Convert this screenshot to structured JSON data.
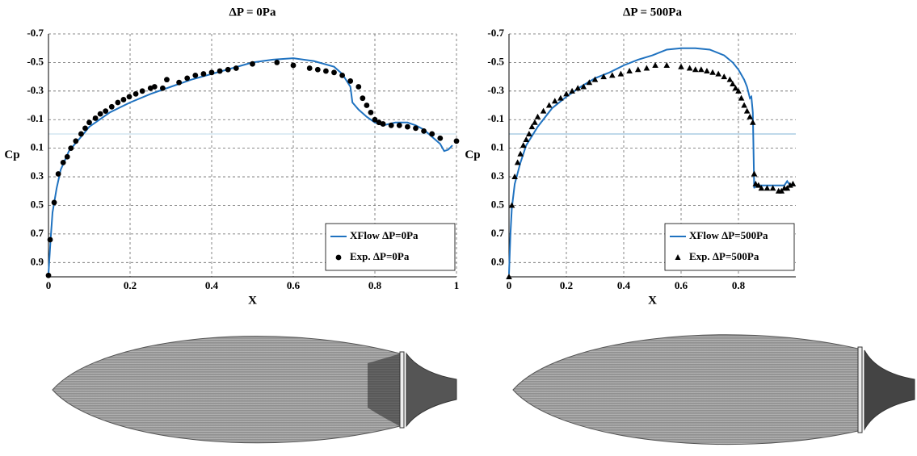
{
  "chart_data": [
    {
      "type": "line",
      "title": "ΔP = 0Pa",
      "x_label": "X",
      "y_label": "Cp",
      "xlim": [
        0,
        1
      ],
      "xticks": [
        0,
        0.2,
        0.4,
        0.6,
        0.8,
        1
      ],
      "ylim": [
        1,
        -0.7
      ],
      "yticks": [
        -0.7,
        -0.5,
        -0.3,
        -0.1,
        0.1,
        0.3,
        0.5,
        0.7,
        0.9
      ],
      "grid": true,
      "legend": "lower right",
      "reference_line": 0,
      "reference_line_color": "#bcd9e8",
      "series": [
        {
          "name": "XFlow ΔP=0Pa",
          "color": "#1f72c0",
          "marker": "line",
          "x": [
            0,
            0.005,
            0.01,
            0.02,
            0.03,
            0.05,
            0.08,
            0.1,
            0.15,
            0.2,
            0.25,
            0.3,
            0.35,
            0.4,
            0.45,
            0.5,
            0.55,
            0.6,
            0.65,
            0.7,
            0.72,
            0.74,
            0.745,
            0.76,
            0.78,
            0.8,
            0.82,
            0.85,
            0.88,
            0.9,
            0.92,
            0.94,
            0.96,
            0.97,
            0.98,
            0.99
          ],
          "values": [
            0.98,
            0.75,
            0.55,
            0.38,
            0.25,
            0.12,
            0.02,
            -0.05,
            -0.15,
            -0.22,
            -0.28,
            -0.33,
            -0.38,
            -0.42,
            -0.46,
            -0.5,
            -0.52,
            -0.53,
            -0.51,
            -0.47,
            -0.42,
            -0.33,
            -0.22,
            -0.17,
            -0.12,
            -0.08,
            -0.06,
            -0.08,
            -0.08,
            -0.06,
            -0.03,
            0.02,
            0.07,
            0.12,
            0.11,
            0.08
          ]
        },
        {
          "name": "Exp. ΔP=0Pa",
          "color": "#000000",
          "marker": "circle",
          "x": [
            0,
            0.004,
            0.014,
            0.024,
            0.036,
            0.046,
            0.055,
            0.067,
            0.08,
            0.09,
            0.1,
            0.115,
            0.127,
            0.14,
            0.155,
            0.17,
            0.184,
            0.198,
            0.214,
            0.23,
            0.25,
            0.26,
            0.28,
            0.29,
            0.32,
            0.34,
            0.36,
            0.38,
            0.4,
            0.42,
            0.44,
            0.46,
            0.5,
            0.56,
            0.6,
            0.64,
            0.66,
            0.68,
            0.7,
            0.72,
            0.74,
            0.76,
            0.77,
            0.78,
            0.79,
            0.8,
            0.81,
            0.82,
            0.84,
            0.86,
            0.88,
            0.9,
            0.92,
            0.94,
            0.96,
            1.0
          ],
          "values": [
            0.99,
            0.74,
            0.48,
            0.28,
            0.2,
            0.16,
            0.1,
            0.05,
            0.0,
            -0.04,
            -0.08,
            -0.11,
            -0.14,
            -0.16,
            -0.19,
            -0.22,
            -0.24,
            -0.26,
            -0.28,
            -0.3,
            -0.32,
            -0.33,
            -0.32,
            -0.38,
            -0.36,
            -0.39,
            -0.41,
            -0.42,
            -0.43,
            -0.44,
            -0.45,
            -0.46,
            -0.49,
            -0.5,
            -0.48,
            -0.46,
            -0.45,
            -0.44,
            -0.43,
            -0.41,
            -0.37,
            -0.33,
            -0.25,
            -0.2,
            -0.15,
            -0.1,
            -0.08,
            -0.07,
            -0.06,
            -0.06,
            -0.05,
            -0.04,
            -0.02,
            0.0,
            0.03,
            0.05
          ]
        }
      ]
    },
    {
      "type": "line",
      "title": "ΔP = 500Pa",
      "x_label": "X",
      "y_label": "Cp",
      "xlim": [
        0,
        1
      ],
      "xticks": [
        0,
        0.2,
        0.4,
        0.6,
        0.8
      ],
      "ylim": [
        1,
        -0.7
      ],
      "yticks": [
        -0.7,
        -0.5,
        -0.3,
        -0.1,
        0.1,
        0.3,
        0.5,
        0.7,
        0.9
      ],
      "grid": true,
      "legend": "lower right",
      "reference_line": 0,
      "reference_line_color": "#7fb3d5",
      "series": [
        {
          "name": "XFlow ΔP=500Pa",
          "color": "#1f72c0",
          "marker": "line",
          "x": [
            0,
            0.005,
            0.01,
            0.02,
            0.04,
            0.06,
            0.1,
            0.15,
            0.2,
            0.25,
            0.3,
            0.35,
            0.4,
            0.45,
            0.5,
            0.55,
            0.6,
            0.65,
            0.7,
            0.75,
            0.78,
            0.8,
            0.82,
            0.83,
            0.84,
            0.845,
            0.85,
            0.855,
            0.86,
            0.9,
            0.94,
            0.96,
            0.97,
            0.98,
            0.99
          ],
          "values": [
            0.98,
            0.7,
            0.52,
            0.35,
            0.2,
            0.08,
            -0.05,
            -0.18,
            -0.26,
            -0.33,
            -0.39,
            -0.43,
            -0.48,
            -0.52,
            -0.55,
            -0.59,
            -0.6,
            -0.6,
            -0.59,
            -0.55,
            -0.5,
            -0.45,
            -0.38,
            -0.33,
            -0.25,
            -0.26,
            -0.15,
            0.38,
            0.36,
            0.36,
            0.36,
            0.36,
            0.33,
            0.36,
            0.35
          ]
        },
        {
          "name": "Exp. ΔP=500Pa",
          "color": "#000000",
          "marker": "triangle",
          "x": [
            0,
            0.01,
            0.02,
            0.03,
            0.04,
            0.05,
            0.06,
            0.07,
            0.08,
            0.09,
            0.1,
            0.12,
            0.14,
            0.16,
            0.18,
            0.2,
            0.22,
            0.24,
            0.26,
            0.28,
            0.3,
            0.33,
            0.36,
            0.39,
            0.42,
            0.45,
            0.48,
            0.51,
            0.55,
            0.6,
            0.63,
            0.65,
            0.67,
            0.69,
            0.71,
            0.73,
            0.75,
            0.77,
            0.78,
            0.79,
            0.8,
            0.81,
            0.82,
            0.83,
            0.84,
            0.85,
            0.855,
            0.86,
            0.87,
            0.88,
            0.9,
            0.92,
            0.94,
            0.95,
            0.96,
            0.97,
            0.98,
            0.99
          ],
          "values": [
            1.0,
            0.5,
            0.3,
            0.2,
            0.14,
            0.08,
            0.04,
            0.0,
            -0.05,
            -0.08,
            -0.12,
            -0.16,
            -0.2,
            -0.23,
            -0.25,
            -0.28,
            -0.3,
            -0.32,
            -0.33,
            -0.36,
            -0.38,
            -0.4,
            -0.41,
            -0.42,
            -0.44,
            -0.45,
            -0.46,
            -0.48,
            -0.48,
            -0.47,
            -0.46,
            -0.45,
            -0.45,
            -0.44,
            -0.43,
            -0.42,
            -0.4,
            -0.38,
            -0.35,
            -0.32,
            -0.3,
            -0.25,
            -0.2,
            -0.16,
            -0.12,
            -0.08,
            0.28,
            0.35,
            0.36,
            0.38,
            0.38,
            0.38,
            0.4,
            0.4,
            0.38,
            0.38,
            0.36,
            0.35
          ]
        }
      ]
    }
  ]
}
